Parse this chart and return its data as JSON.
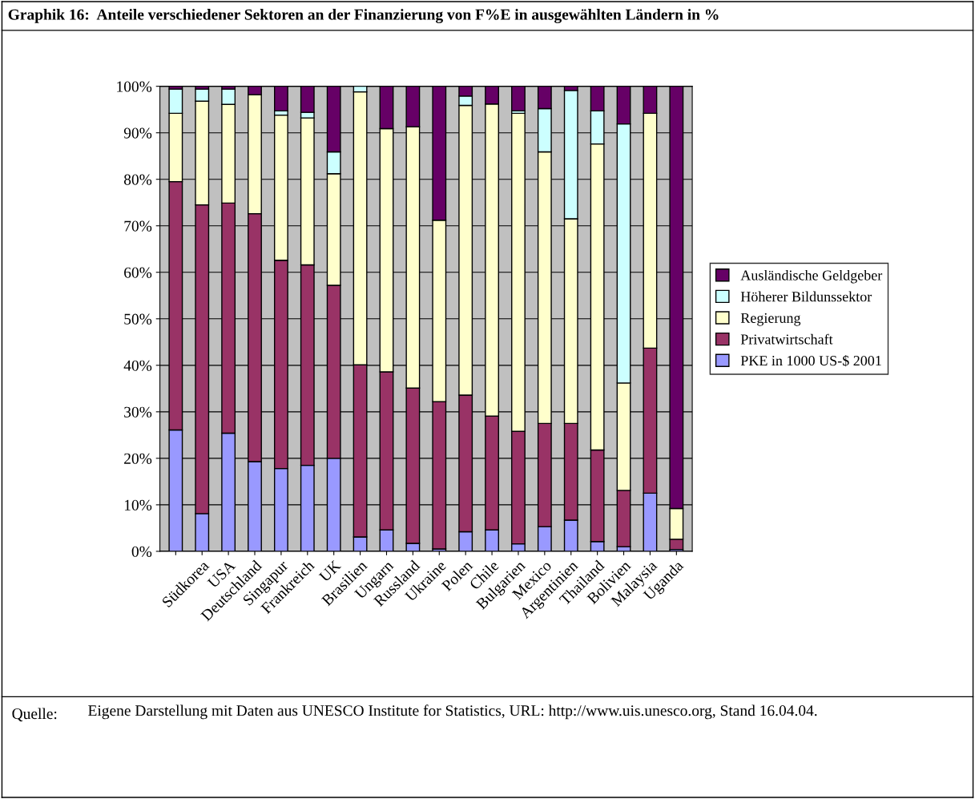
{
  "chart_data": {
    "type": "bar",
    "stacked": true,
    "title": "Graphik 16:  Anteile verschiedener Sektoren an der Finanzierung von F%E in ausgewählten Ländern in %",
    "categories": [
      null,
      "Südkorea",
      "USA",
      "Deutschland",
      "Singapur",
      "Frankreich",
      "UK",
      "Brasilien",
      "Ungarn",
      "Russland",
      "Ukraine",
      "Polen",
      "Chile",
      "Bulgarien",
      "Mexico",
      "Argentinien",
      "Thailand",
      "Bolivien",
      "Malaysia",
      "Uganda"
    ],
    "series": [
      {
        "name": "PKE in 1000 US-$ 2001",
        "color": "#9999ff",
        "values": [
          26.1,
          8.1,
          25.4,
          19.3,
          17.8,
          18.5,
          20.0,
          3.1,
          4.6,
          1.7,
          0.5,
          4.2,
          4.6,
          1.6,
          5.3,
          6.7,
          2.1,
          1.0,
          12.5,
          0.4
        ]
      },
      {
        "name": "Privatwirtschaft",
        "color": "#993366",
        "values": [
          53.4,
          66.4,
          49.5,
          53.3,
          44.8,
          43.1,
          37.2,
          37.0,
          34.0,
          33.4,
          31.7,
          29.4,
          24.5,
          24.2,
          22.2,
          20.8,
          19.7,
          12.1,
          31.2,
          2.2
        ]
      },
      {
        "name": "Regierung",
        "color": "#ffffcc",
        "values": [
          14.7,
          22.3,
          21.2,
          25.6,
          31.2,
          31.6,
          24.0,
          58.7,
          52.3,
          56.2,
          39.0,
          62.3,
          67.1,
          68.4,
          58.4,
          44.0,
          65.8,
          23.1,
          50.5,
          6.6
        ]
      },
      {
        "name": "Höherer Bildunssektor",
        "color": "#ccffff",
        "values": [
          5.2,
          2.6,
          3.3,
          null,
          0.9,
          1.2,
          4.7,
          1.2,
          null,
          null,
          null,
          2.0,
          null,
          0.5,
          9.3,
          27.6,
          7.1,
          55.7,
          null,
          null
        ]
      },
      {
        "name": "Ausländische Geldgeber",
        "color": "#660066",
        "values": [
          0.6,
          0.6,
          0.6,
          1.8,
          5.3,
          5.6,
          14.1,
          null,
          9.1,
          8.7,
          28.8,
          2.1,
          3.8,
          5.3,
          4.8,
          0.9,
          5.3,
          8.1,
          5.8,
          90.8
        ]
      }
    ],
    "ylim": [
      0,
      100
    ],
    "yticks": [
      {
        "value": 0,
        "label": "0%"
      },
      {
        "value": 10,
        "label": "10%"
      },
      {
        "value": 20,
        "label": "20%"
      },
      {
        "value": 30,
        "label": "30%"
      },
      {
        "value": 40,
        "label": "40%"
      },
      {
        "value": 50,
        "label": "50%"
      },
      {
        "value": 60,
        "label": "60%"
      },
      {
        "value": 70,
        "label": "70%"
      },
      {
        "value": 80,
        "label": "80%"
      },
      {
        "value": 90,
        "label": "90%"
      },
      {
        "value": 100,
        "label": "100%"
      }
    ],
    "grid": "y",
    "legend": "right",
    "annotations": [
      "Quelle:",
      "Eigene Darstellung mit Daten aus UNESCO Institute for Statistics, URL: http://www.uis.unesco.org, Stand 16.04.04."
    ]
  }
}
